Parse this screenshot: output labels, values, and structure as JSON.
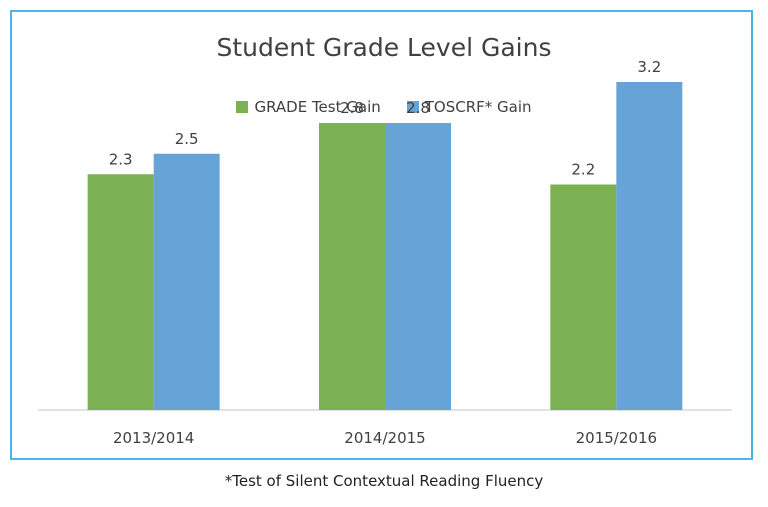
{
  "chart_data": {
    "type": "bar",
    "title": "Student Grade Level Gains",
    "categories": [
      "2013/2014",
      "2014/2015",
      "2015/2016"
    ],
    "series": [
      {
        "name": "GRADE Test Gain",
        "values": [
          2.3,
          2.8,
          2.2
        ],
        "color": "#7cb153"
      },
      {
        "name": "TOSCRF* Gain",
        "values": [
          2.5,
          2.8,
          3.2
        ],
        "color": "#66a3d6"
      }
    ],
    "data_labels": true,
    "grid": false,
    "legend_position": "top",
    "ylim": [
      0,
      3.2
    ]
  },
  "footnote": "*Test of Silent Contextual Reading Fluency",
  "colors": {
    "border": "#4fb3e8",
    "axis": "#d9d9d9",
    "text": "#404040"
  }
}
